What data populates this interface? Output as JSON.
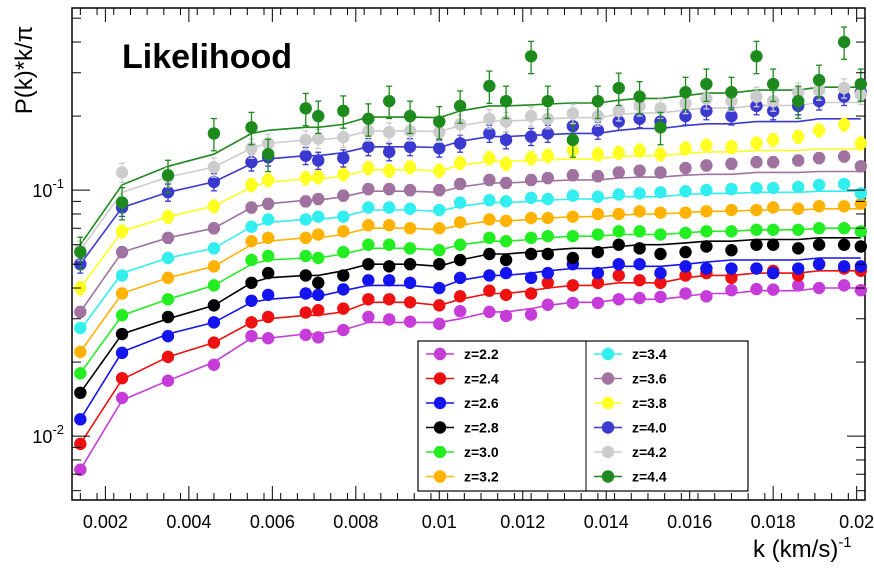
{
  "chart_data": {
    "type": "scatter",
    "title": "",
    "annotation": "Likelihood",
    "xlabel": "k  (km/s)",
    "xlabel_exponent": "-1",
    "ylabel": "P(k)*k/π",
    "xlim": [
      0.0012,
      0.0202
    ],
    "ylim": [
      0.0055,
      0.55
    ],
    "yscale": "log",
    "grid": false,
    "legend_position": "bottom-right, two columns",
    "x_ticks": [
      {
        "value": 0.002,
        "label": "0.002"
      },
      {
        "value": 0.004,
        "label": "0.004"
      },
      {
        "value": 0.006,
        "label": "0.006"
      },
      {
        "value": 0.008,
        "label": "0.008"
      },
      {
        "value": 0.01,
        "label": "0.01"
      },
      {
        "value": 0.012,
        "label": "0.012"
      },
      {
        "value": 0.014,
        "label": "0.014"
      },
      {
        "value": 0.016,
        "label": "0.016"
      },
      {
        "value": 0.018,
        "label": "0.018"
      },
      {
        "value": 0.02,
        "label": "0.02"
      }
    ],
    "y_ticks": [
      {
        "value": 0.01,
        "base": "10",
        "exp": "-2"
      },
      {
        "value": 0.1,
        "base": "10",
        "exp": "-1"
      }
    ],
    "x": [
      0.0014,
      0.0024,
      0.0035,
      0.0046,
      0.0055,
      0.0059,
      0.0068,
      0.0071,
      0.0077,
      0.0083,
      0.0088,
      0.0093,
      0.01,
      0.0105,
      0.0112,
      0.0116,
      0.0122,
      0.0126,
      0.0132,
      0.0138,
      0.0143,
      0.0148,
      0.0153,
      0.0159,
      0.0164,
      0.017,
      0.0176,
      0.018,
      0.0186,
      0.0191,
      0.0197,
      0.0201
    ],
    "series": [
      {
        "name": "z=2.2",
        "color": "#c63cd9",
        "err": 0.03,
        "model": [
          0.0073,
          0.014,
          0.0168,
          0.02,
          0.025,
          0.025,
          0.026,
          0.026,
          0.027,
          0.029,
          0.029,
          0.029,
          0.029,
          0.03,
          0.032,
          0.032,
          0.033,
          0.034,
          0.035,
          0.035,
          0.036,
          0.036,
          0.036,
          0.037,
          0.038,
          0.038,
          0.039,
          0.039,
          0.039,
          0.04,
          0.04,
          0.04
        ],
        "values": [
          0.0073,
          0.0143,
          0.0168,
          0.0195,
          0.0255,
          0.025,
          0.0258,
          0.0252,
          0.027,
          0.0305,
          0.0298,
          0.0292,
          0.0286,
          0.0322,
          0.032,
          0.0308,
          0.0312,
          0.0342,
          0.0348,
          0.0348,
          0.036,
          0.0364,
          0.0368,
          0.038,
          0.037,
          0.0392,
          0.0396,
          0.0394,
          0.041,
          0.04,
          0.041,
          0.0392
        ]
      },
      {
        "name": "z=2.4",
        "color": "#ee1111",
        "err": 0.04,
        "model": [
          0.0093,
          0.017,
          0.021,
          0.024,
          0.029,
          0.03,
          0.031,
          0.031,
          0.032,
          0.035,
          0.035,
          0.035,
          0.034,
          0.036,
          0.038,
          0.038,
          0.039,
          0.04,
          0.041,
          0.041,
          0.042,
          0.042,
          0.042,
          0.044,
          0.045,
          0.045,
          0.046,
          0.046,
          0.046,
          0.047,
          0.047,
          0.047
        ],
        "values": [
          0.0093,
          0.0172,
          0.021,
          0.024,
          0.029,
          0.0305,
          0.0318,
          0.0325,
          0.033,
          0.036,
          0.036,
          0.035,
          0.034,
          0.037,
          0.039,
          0.0375,
          0.038,
          0.042,
          0.041,
          0.042,
          0.045,
          0.043,
          0.042,
          0.045,
          0.046,
          0.044,
          0.048,
          0.047,
          0.045,
          0.05,
          0.048,
          0.047
        ]
      },
      {
        "name": "z=2.6",
        "color": "#1414ee",
        "err": 0.04,
        "model": [
          0.0117,
          0.022,
          0.026,
          0.029,
          0.035,
          0.036,
          0.037,
          0.037,
          0.039,
          0.041,
          0.041,
          0.041,
          0.04,
          0.043,
          0.045,
          0.045,
          0.046,
          0.047,
          0.048,
          0.048,
          0.049,
          0.049,
          0.049,
          0.05,
          0.051,
          0.052,
          0.052,
          0.052,
          0.052,
          0.053,
          0.053,
          0.053
        ],
        "values": [
          0.0117,
          0.0218,
          0.0255,
          0.029,
          0.0355,
          0.0375,
          0.038,
          0.0375,
          0.0395,
          0.043,
          0.043,
          0.042,
          0.04,
          0.044,
          0.045,
          0.046,
          0.044,
          0.046,
          0.05,
          0.046,
          0.05,
          0.05,
          0.046,
          0.049,
          0.048,
          0.048,
          0.048,
          0.046,
          0.048,
          0.05,
          0.049,
          0.049
        ]
      },
      {
        "name": "z=2.8",
        "color": "#000000",
        "err": 0.04,
        "model": [
          0.015,
          0.026,
          0.03,
          0.034,
          0.042,
          0.044,
          0.045,
          0.045,
          0.047,
          0.05,
          0.05,
          0.05,
          0.049,
          0.052,
          0.055,
          0.055,
          0.056,
          0.057,
          0.058,
          0.058,
          0.059,
          0.06,
          0.06,
          0.061,
          0.062,
          0.062,
          0.063,
          0.063,
          0.063,
          0.064,
          0.064,
          0.064
        ],
        "values": [
          0.015,
          0.026,
          0.0305,
          0.034,
          0.042,
          0.046,
          0.045,
          0.042,
          0.045,
          0.05,
          0.049,
          0.05,
          0.05,
          0.052,
          0.055,
          0.052,
          0.055,
          0.055,
          0.053,
          0.056,
          0.06,
          0.058,
          0.055,
          0.056,
          0.059,
          0.057,
          0.06,
          0.06,
          0.058,
          0.06,
          0.06,
          0.059
        ]
      },
      {
        "name": "z=3.0",
        "color": "#22ee22",
        "err": 0.04,
        "model": [
          0.018,
          0.031,
          0.036,
          0.041,
          0.05,
          0.052,
          0.053,
          0.053,
          0.055,
          0.058,
          0.058,
          0.058,
          0.057,
          0.06,
          0.062,
          0.062,
          0.063,
          0.064,
          0.065,
          0.065,
          0.066,
          0.066,
          0.066,
          0.067,
          0.068,
          0.068,
          0.069,
          0.069,
          0.069,
          0.07,
          0.07,
          0.07
        ],
        "values": [
          0.018,
          0.031,
          0.036,
          0.041,
          0.052,
          0.054,
          0.054,
          0.053,
          0.056,
          0.06,
          0.06,
          0.058,
          0.057,
          0.06,
          0.064,
          0.062,
          0.064,
          0.065,
          0.065,
          0.066,
          0.068,
          0.068,
          0.066,
          0.067,
          0.068,
          0.068,
          0.069,
          0.069,
          0.069,
          0.07,
          0.07,
          0.068
        ]
      },
      {
        "name": "z=3.2",
        "color": "#ffb300",
        "err": 0.04,
        "model": [
          0.022,
          0.038,
          0.044,
          0.049,
          0.06,
          0.062,
          0.064,
          0.064,
          0.066,
          0.07,
          0.07,
          0.07,
          0.069,
          0.072,
          0.075,
          0.075,
          0.076,
          0.077,
          0.078,
          0.078,
          0.079,
          0.08,
          0.08,
          0.081,
          0.082,
          0.082,
          0.083,
          0.083,
          0.083,
          0.084,
          0.084,
          0.084
        ],
        "values": [
          0.022,
          0.038,
          0.044,
          0.049,
          0.062,
          0.064,
          0.064,
          0.066,
          0.068,
          0.072,
          0.072,
          0.07,
          0.07,
          0.074,
          0.076,
          0.075,
          0.077,
          0.077,
          0.078,
          0.08,
          0.08,
          0.082,
          0.081,
          0.081,
          0.082,
          0.083,
          0.083,
          0.085,
          0.084,
          0.086,
          0.086,
          0.088
        ]
      },
      {
        "name": "z=3.4",
        "color": "#33eeee",
        "err": 0.04,
        "model": [
          0.027,
          0.046,
          0.053,
          0.058,
          0.071,
          0.074,
          0.076,
          0.076,
          0.078,
          0.083,
          0.083,
          0.083,
          0.082,
          0.086,
          0.089,
          0.089,
          0.09,
          0.091,
          0.092,
          0.092,
          0.094,
          0.094,
          0.094,
          0.096,
          0.097,
          0.097,
          0.098,
          0.098,
          0.098,
          0.099,
          0.099,
          0.099
        ],
        "values": [
          0.0275,
          0.045,
          0.053,
          0.058,
          0.071,
          0.076,
          0.076,
          0.078,
          0.078,
          0.085,
          0.085,
          0.084,
          0.083,
          0.089,
          0.091,
          0.09,
          0.093,
          0.092,
          0.095,
          0.094,
          0.096,
          0.097,
          0.098,
          0.099,
          0.1,
          0.101,
          0.102,
          0.102,
          0.103,
          0.105,
          0.106,
          0.097
        ]
      },
      {
        "name": "z=3.6",
        "color": "#a0729f",
        "err": 0.05,
        "model": [
          0.032,
          0.056,
          0.064,
          0.07,
          0.085,
          0.088,
          0.091,
          0.091,
          0.094,
          0.099,
          0.099,
          0.099,
          0.098,
          0.103,
          0.107,
          0.107,
          0.108,
          0.109,
          0.11,
          0.11,
          0.112,
          0.113,
          0.113,
          0.115,
          0.116,
          0.116,
          0.118,
          0.118,
          0.118,
          0.119,
          0.119,
          0.119
        ],
        "values": [
          0.032,
          0.056,
          0.064,
          0.07,
          0.085,
          0.088,
          0.09,
          0.092,
          0.095,
          0.101,
          0.101,
          0.1,
          0.1,
          0.106,
          0.11,
          0.107,
          0.11,
          0.112,
          0.115,
          0.114,
          0.118,
          0.12,
          0.118,
          0.123,
          0.126,
          0.128,
          0.13,
          0.13,
          0.132,
          0.135,
          0.137,
          0.125
        ]
      },
      {
        "name": "z=3.8",
        "color": "#ffff22",
        "err": 0.06,
        "model": [
          0.04,
          0.068,
          0.078,
          0.086,
          0.103,
          0.108,
          0.111,
          0.111,
          0.114,
          0.121,
          0.121,
          0.121,
          0.12,
          0.126,
          0.131,
          0.131,
          0.132,
          0.133,
          0.134,
          0.134,
          0.137,
          0.138,
          0.138,
          0.141,
          0.143,
          0.143,
          0.145,
          0.145,
          0.145,
          0.147,
          0.147,
          0.147
        ],
        "values": [
          0.04,
          0.068,
          0.078,
          0.086,
          0.105,
          0.11,
          0.112,
          0.113,
          0.116,
          0.123,
          0.12,
          0.124,
          0.12,
          0.129,
          0.135,
          0.128,
          0.135,
          0.138,
          0.145,
          0.14,
          0.142,
          0.145,
          0.14,
          0.148,
          0.152,
          0.15,
          0.155,
          0.16,
          0.165,
          0.175,
          0.185,
          0.155
        ]
      },
      {
        "name": "z=4.0",
        "color": "#3a3ad0",
        "err": 0.08,
        "model": [
          0.05,
          0.085,
          0.098,
          0.108,
          0.128,
          0.134,
          0.138,
          0.138,
          0.142,
          0.15,
          0.15,
          0.15,
          0.149,
          0.158,
          0.165,
          0.165,
          0.167,
          0.168,
          0.17,
          0.17,
          0.175,
          0.178,
          0.178,
          0.183,
          0.186,
          0.186,
          0.19,
          0.19,
          0.19,
          0.195,
          0.195,
          0.195
        ],
        "values": [
          0.05,
          0.085,
          0.098,
          0.108,
          0.13,
          0.136,
          0.138,
          0.132,
          0.135,
          0.15,
          0.143,
          0.15,
          0.148,
          0.155,
          0.17,
          0.16,
          0.165,
          0.17,
          0.182,
          0.175,
          0.19,
          0.195,
          0.19,
          0.2,
          0.21,
          0.2,
          0.22,
          0.21,
          0.22,
          0.23,
          0.24,
          0.25
        ]
      },
      {
        "name": "z=4.2",
        "color": "#cccccc",
        "err": 0.09,
        "model": [
          0.057,
          0.098,
          0.113,
          0.124,
          0.148,
          0.155,
          0.16,
          0.16,
          0.164,
          0.174,
          0.174,
          0.174,
          0.173,
          0.183,
          0.191,
          0.191,
          0.193,
          0.195,
          0.197,
          0.197,
          0.203,
          0.206,
          0.206,
          0.212,
          0.216,
          0.216,
          0.221,
          0.221,
          0.221,
          0.227,
          0.227,
          0.227
        ],
        "values": [
          0.057,
          0.118,
          0.113,
          0.124,
          0.148,
          0.155,
          0.16,
          0.162,
          0.164,
          0.174,
          0.172,
          0.174,
          0.172,
          0.185,
          0.195,
          0.19,
          0.2,
          0.195,
          0.205,
          0.2,
          0.21,
          0.22,
          0.215,
          0.225,
          0.235,
          0.23,
          0.24,
          0.23,
          0.25,
          0.255,
          0.26,
          0.245
        ]
      },
      {
        "name": "z=4.4",
        "color": "#1e8a1e",
        "err": 0.15,
        "model": [
          0.06,
          0.105,
          0.125,
          0.14,
          0.17,
          0.175,
          0.18,
          0.18,
          0.185,
          0.198,
          0.198,
          0.198,
          0.197,
          0.21,
          0.22,
          0.22,
          0.222,
          0.224,
          0.226,
          0.226,
          0.232,
          0.236,
          0.236,
          0.242,
          0.248,
          0.248,
          0.255,
          0.255,
          0.255,
          0.262,
          0.262,
          0.262
        ],
        "values": [
          0.056,
          0.089,
          0.115,
          0.17,
          0.18,
          0.14,
          0.215,
          0.2,
          0.21,
          0.195,
          0.23,
          0.2,
          0.19,
          0.22,
          0.265,
          0.23,
          0.35,
          0.23,
          0.16,
          0.23,
          0.26,
          0.24,
          0.18,
          0.25,
          0.27,
          0.25,
          0.35,
          0.27,
          0.23,
          0.28,
          0.4,
          0.27
        ]
      }
    ]
  }
}
